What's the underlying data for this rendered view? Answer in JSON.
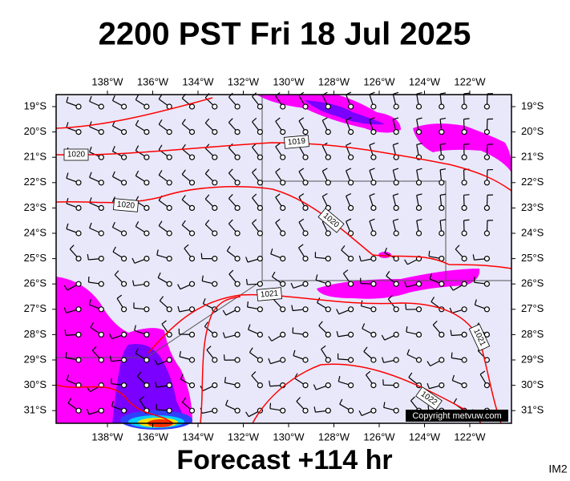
{
  "title": "2200 PST Fri 18 Jul 2025",
  "longitudes": [
    "138°W",
    "136°W",
    "134°W",
    "132°W",
    "130°W",
    "128°W",
    "126°W",
    "124°W",
    "122°W"
  ],
  "latitudes": [
    "19°S",
    "20°S",
    "21°S",
    "22°S",
    "23°S",
    "24°S",
    "25°S",
    "26°S",
    "27°S",
    "28°S",
    "29°S",
    "30°S",
    "31°S"
  ],
  "isobar_labels": [
    "1019",
    "1020",
    "1020",
    "1020",
    "1021",
    "1021",
    "1022"
  ],
  "copyright": "Copyright metvuw.com",
  "footer": "Forecast +114 hr",
  "image_id": "IM2"
}
